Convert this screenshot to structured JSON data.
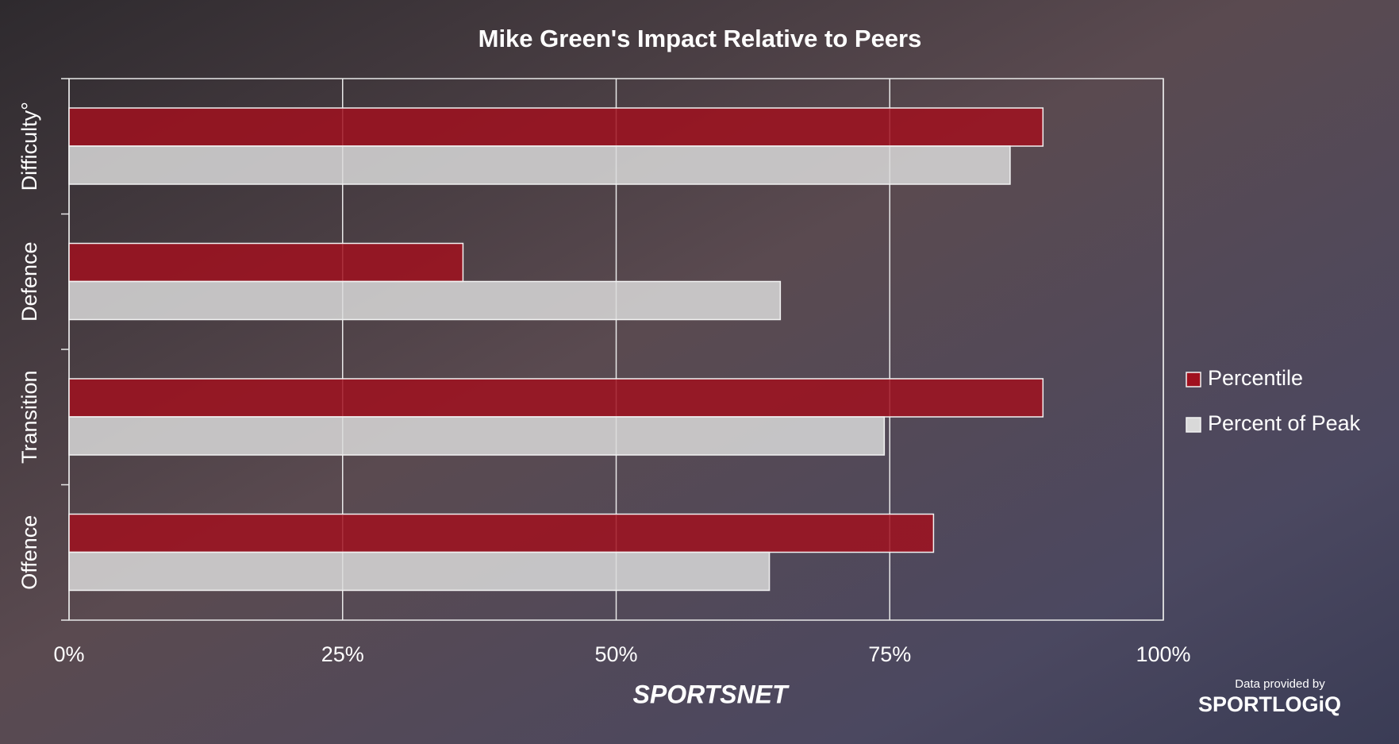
{
  "chart_data": {
    "type": "bar",
    "orientation": "horizontal",
    "title": "Mike Green's Impact Relative to Peers",
    "categories": [
      "Difficulty°",
      "Defence",
      "Transition",
      "Offence"
    ],
    "series": [
      {
        "name": "Percentile",
        "color": "#a0101e",
        "values": [
          89,
          36,
          89,
          79
        ]
      },
      {
        "name": "Percent of Peak",
        "color": "#d9d9d9",
        "values": [
          86,
          65,
          74.5,
          64
        ]
      }
    ],
    "xlim": [
      0,
      100
    ],
    "xticks": [
      {
        "value": 0,
        "label": "0%"
      },
      {
        "value": 25,
        "label": "25%"
      },
      {
        "value": 50,
        "label": "50%"
      },
      {
        "value": 75,
        "label": "75%"
      },
      {
        "value": 100,
        "label": "100%"
      }
    ],
    "grid": true,
    "legend": "right",
    "logo": "SPORTSNET",
    "source_label": "Data provided by",
    "source_logo": "SPORTLOGiQ"
  }
}
